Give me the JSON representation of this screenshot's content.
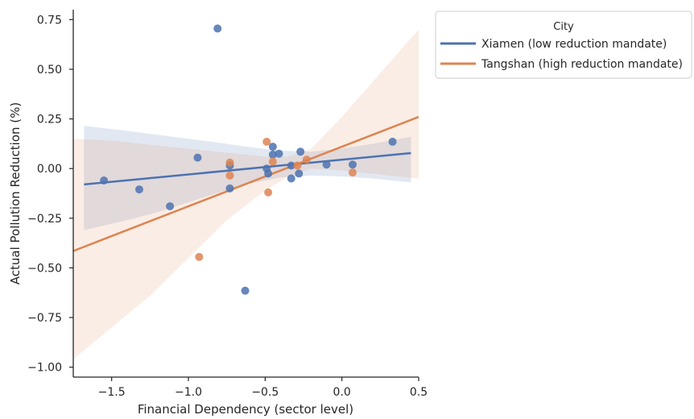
{
  "chart_data": {
    "type": "scatter",
    "title": "",
    "xlabel": "Financial Dependency (sector level)",
    "ylabel": "Actual Pollution Reduction (%)",
    "xlim": [
      -1.75,
      0.5
    ],
    "ylim": [
      -1.05,
      0.8
    ],
    "xticks": [
      -1.5,
      -1.0,
      -0.5,
      0.0,
      0.5
    ],
    "xtick_labels": [
      "−1.5",
      "−1.0",
      "−0.5",
      "0.0",
      "0.5"
    ],
    "yticks": [
      0.75,
      0.5,
      0.25,
      0.0,
      -0.25,
      -0.5,
      -0.75,
      -1.0
    ],
    "ytick_labels": [
      "0.75",
      "0.50",
      "0.25",
      "0.00",
      "−0.25",
      "−0.50",
      "−0.75",
      "−1.00"
    ],
    "grid": false,
    "legend": {
      "title": "City",
      "placement": "outside-upper-right",
      "entries": [
        "Xiamen (low reduction mandate)",
        "Tangshan (high reduction mandate)"
      ]
    },
    "series": [
      {
        "name": "Xiamen (low reduction mandate)",
        "color": "#4c72b0",
        "points": [
          [
            -1.55,
            -0.06
          ],
          [
            -1.32,
            -0.105
          ],
          [
            -1.12,
            -0.19
          ],
          [
            -0.94,
            0.055
          ],
          [
            -0.81,
            0.705
          ],
          [
            -0.73,
            0.015
          ],
          [
            -0.73,
            -0.1
          ],
          [
            -0.63,
            -0.615
          ],
          [
            -0.49,
            0.0
          ],
          [
            -0.48,
            -0.025
          ],
          [
            -0.45,
            0.11
          ],
          [
            -0.45,
            0.07
          ],
          [
            -0.41,
            0.075
          ],
          [
            -0.33,
            0.015
          ],
          [
            -0.33,
            -0.05
          ],
          [
            -0.28,
            -0.025
          ],
          [
            -0.27,
            0.085
          ],
          [
            -0.1,
            0.02
          ],
          [
            0.07,
            0.02
          ],
          [
            0.33,
            0.135
          ]
        ],
        "fit": {
          "x_range": [
            -1.68,
            0.45
          ],
          "y_start": -0.08,
          "y_end": 0.078
        },
        "ci": {
          "x": [
            -1.68,
            -1.4,
            -1.2,
            -1.0,
            -0.8,
            -0.6,
            -0.4,
            -0.2,
            0.0,
            0.2,
            0.45
          ],
          "upper": [
            0.215,
            0.19,
            0.17,
            0.15,
            0.13,
            0.108,
            0.09,
            0.085,
            0.1,
            0.125,
            0.16
          ],
          "lower": [
            -0.31,
            -0.26,
            -0.22,
            -0.17,
            -0.12,
            -0.075,
            -0.045,
            -0.035,
            -0.04,
            -0.05,
            -0.07
          ]
        }
      },
      {
        "name": "Tangshan (high reduction mandate)",
        "color": "#dd8452",
        "points": [
          [
            -0.93,
            -0.445
          ],
          [
            -0.73,
            0.03
          ],
          [
            -0.73,
            -0.035
          ],
          [
            -0.49,
            0.135
          ],
          [
            -0.48,
            -0.12
          ],
          [
            -0.45,
            0.035
          ],
          [
            -0.29,
            0.015
          ],
          [
            -0.23,
            0.045
          ],
          [
            0.07,
            -0.02
          ]
        ],
        "fit": {
          "x_range": [
            -1.75,
            0.5
          ],
          "y_start": -0.415,
          "y_end": 0.26
        },
        "ci": {
          "x": [
            -1.75,
            -1.5,
            -1.25,
            -1.0,
            -0.75,
            -0.5,
            -0.35,
            -0.2,
            0.0,
            0.25,
            0.5
          ],
          "upper": [
            0.15,
            0.14,
            0.12,
            0.1,
            0.08,
            0.06,
            0.06,
            0.1,
            0.26,
            0.48,
            0.7
          ],
          "lower": [
            -0.96,
            -0.8,
            -0.64,
            -0.45,
            -0.26,
            -0.11,
            -0.04,
            0.0,
            -0.01,
            -0.03,
            -0.05
          ]
        }
      }
    ]
  }
}
